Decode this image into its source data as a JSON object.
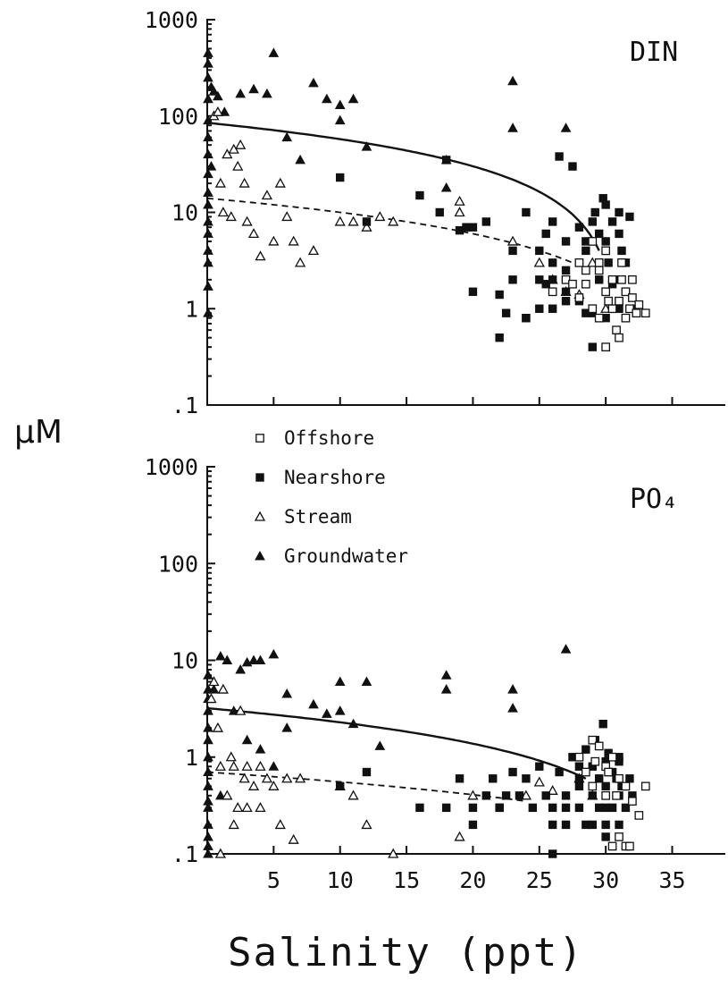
{
  "figure": {
    "ylabel": "µM",
    "xlabel": "Salinity (ppt)"
  },
  "legend": [
    {
      "label": "Offshore",
      "marker": "open-square"
    },
    {
      "label": "Nearshore",
      "marker": "filled-square"
    },
    {
      "label": "Stream",
      "marker": "open-triangle"
    },
    {
      "label": "Groundwater",
      "marker": "filled-triangle"
    }
  ],
  "chart_data": [
    {
      "type": "scatter",
      "title": "DIN",
      "yscale": "log",
      "ylim": [
        0.1,
        1000
      ],
      "xlim": [
        0,
        39
      ],
      "yticks": [
        0.1,
        1,
        10,
        100,
        1000
      ],
      "ytick_labels": [
        ".1",
        "1",
        "10",
        "100",
        "1000"
      ],
      "xticks": [
        5,
        10,
        15,
        20,
        25,
        30,
        35
      ],
      "xtick_labels": [],
      "series": [
        {
          "name": "Groundwater",
          "marker": "filled-triangle",
          "x": [
            0,
            0,
            0,
            0,
            0,
            0,
            0,
            0,
            0,
            0,
            0,
            0,
            0,
            0,
            0,
            0,
            0.3,
            0.3,
            0.5,
            0.8,
            1.3,
            2.5,
            3.5,
            4.5,
            5,
            6,
            7,
            8,
            9,
            10,
            10,
            11,
            12,
            18,
            18,
            23,
            23,
            27
          ],
          "y": [
            450,
            350,
            250,
            150,
            90,
            60,
            40,
            25,
            16,
            12,
            8,
            6,
            4,
            3,
            1.7,
            0.9,
            200,
            30,
            180,
            160,
            110,
            170,
            190,
            170,
            450,
            60,
            35,
            220,
            150,
            130,
            90,
            150,
            48,
            35,
            18,
            230,
            75,
            75
          ]
        },
        {
          "name": "Stream",
          "marker": "open-triangle",
          "x": [
            0.5,
            0.8,
            1,
            1.2,
            1.5,
            1.8,
            2,
            2.3,
            2.5,
            2.8,
            3,
            3.5,
            4,
            4.5,
            5,
            5.5,
            6,
            6.5,
            7,
            8,
            10,
            11,
            12,
            13,
            14,
            19,
            19,
            23,
            25,
            26,
            27,
            28,
            29,
            30
          ],
          "y": [
            100,
            110,
            20,
            10,
            40,
            9,
            45,
            30,
            50,
            20,
            8,
            6,
            3.5,
            15,
            5,
            20,
            9,
            5,
            3,
            4,
            8,
            8,
            7,
            9,
            8,
            13,
            10,
            5,
            3,
            2,
            1.5,
            1.4,
            3,
            1
          ]
        },
        {
          "name": "Nearshore",
          "marker": "filled-square",
          "x": [
            10,
            12,
            16,
            17.5,
            18,
            19,
            19.5,
            20,
            20,
            21,
            22,
            22,
            22.5,
            23,
            23,
            24,
            24,
            25,
            25,
            25.5,
            26,
            26,
            26.5,
            27,
            27,
            27.5,
            28,
            28,
            28.5,
            28.5,
            29,
            29,
            29.2,
            29.5,
            29.5,
            29.8,
            30,
            30,
            30,
            30.2,
            30.5,
            30.5,
            30.8,
            31,
            31,
            31,
            31.2,
            31.5,
            31.5,
            31.8,
            32,
            26,
            25.5,
            28,
            27,
            29,
            30,
            31,
            28.5,
            29.5,
            30.5,
            26,
            27,
            24,
            25
          ],
          "y": [
            23,
            8,
            15,
            10,
            35,
            6.5,
            7,
            1.5,
            7,
            8,
            1.4,
            0.5,
            0.9,
            4,
            2,
            10,
            0.8,
            4,
            2,
            6,
            3,
            1,
            38,
            5,
            1.5,
            30,
            7,
            1.2,
            4,
            0.9,
            8,
            0.4,
            10,
            6,
            2,
            14,
            12,
            5,
            1.5,
            3,
            8,
            1,
            2,
            6,
            10,
            1,
            4,
            3,
            1.5,
            9,
            1,
            8,
            1.8,
            3,
            2.5,
            0.9,
            0.8,
            1.2,
            5,
            3,
            1.8,
            2,
            1.2,
            0.8,
            1
          ]
        },
        {
          "name": "Offshore",
          "marker": "open-square",
          "x": [
            26,
            27,
            28,
            28,
            28.5,
            29,
            29,
            29.5,
            29.5,
            30,
            30,
            30,
            30.5,
            30.5,
            30.8,
            31,
            31,
            31.2,
            31.5,
            31.5,
            31.8,
            32,
            32,
            32.3,
            32.5,
            33,
            28.5,
            29.5,
            30.2,
            31.2,
            27.5
          ],
          "y": [
            1.5,
            2,
            1.3,
            3,
            2.5,
            1,
            5,
            0.8,
            3,
            1.5,
            4,
            0.4,
            2,
            1,
            0.6,
            0.5,
            1.2,
            3,
            1.5,
            0.8,
            1,
            2,
            1.3,
            0.9,
            1.1,
            0.9,
            1.8,
            2.5,
            1.2,
            2,
            1.8
          ]
        }
      ]
    },
    {
      "type": "scatter",
      "title": "PO₄",
      "yscale": "log",
      "ylim": [
        0.1,
        1000
      ],
      "xlim": [
        0,
        39
      ],
      "yticks": [
        0.1,
        1,
        10,
        100,
        1000
      ],
      "ytick_labels": [
        ".1",
        "1",
        "10",
        "100",
        "1000"
      ],
      "xticks": [
        5,
        10,
        15,
        20,
        25,
        30,
        35
      ],
      "xtick_labels": [
        "5",
        "10",
        "15",
        "20",
        "25",
        "30",
        "35"
      ],
      "series": [
        {
          "name": "Groundwater",
          "marker": "filled-triangle",
          "x": [
            0,
            0,
            0,
            0,
            0,
            0,
            0,
            0,
            0,
            0,
            0,
            0,
            0,
            0,
            0,
            0.5,
            1,
            1.5,
            2.5,
            3,
            3.5,
            4,
            5,
            6,
            6,
            8,
            9,
            10,
            10,
            11,
            12,
            13,
            18,
            18,
            23,
            23,
            27,
            3,
            2,
            4,
            5,
            1
          ],
          "y": [
            7,
            5,
            4,
            3,
            2,
            1.5,
            1,
            0.7,
            0.5,
            0.35,
            0.3,
            0.2,
            0.15,
            0.12,
            0.1,
            5,
            11,
            10,
            8,
            9.5,
            10,
            10,
            11.5,
            4.5,
            2,
            3.5,
            2.8,
            6,
            3,
            2.2,
            6,
            1.3,
            7,
            5,
            5,
            3.2,
            13,
            1.5,
            3,
            1.2,
            0.8,
            0.4
          ]
        },
        {
          "name": "Stream",
          "marker": "open-triangle",
          "x": [
            0.3,
            0.5,
            0.8,
            1,
            1.2,
            1.5,
            1.8,
            2,
            2.3,
            2.5,
            2.8,
            3,
            3.5,
            4,
            4.5,
            5,
            5.5,
            6,
            6.5,
            7,
            10,
            11,
            12,
            14,
            19,
            20,
            24,
            25,
            26,
            28,
            29,
            1,
            2,
            3,
            4
          ],
          "y": [
            4,
            6,
            2,
            0.8,
            5,
            0.4,
            1,
            0.8,
            0.3,
            3,
            0.6,
            0.3,
            0.5,
            0.8,
            0.6,
            0.5,
            0.2,
            0.6,
            0.14,
            0.6,
            0.5,
            0.4,
            0.2,
            0.1,
            0.15,
            0.4,
            0.4,
            0.55,
            0.45,
            0.6,
            0.4,
            0.1,
            0.2,
            0.8,
            0.3
          ]
        },
        {
          "name": "Nearshore",
          "marker": "filled-square",
          "x": [
            10,
            12,
            16,
            18,
            19,
            20,
            21,
            21.5,
            22,
            22.5,
            23,
            23.5,
            24,
            24.5,
            25,
            25.5,
            26,
            26,
            26.5,
            27,
            27,
            27.5,
            28,
            28,
            28.5,
            28.5,
            29,
            29,
            29.2,
            29.5,
            29.5,
            29.8,
            30,
            30,
            30,
            30.2,
            30.5,
            30.5,
            30.8,
            31,
            31,
            31.2,
            31.5,
            31.8,
            32,
            26,
            27,
            28,
            29,
            30,
            31,
            28,
            29,
            30,
            31,
            20,
            22
          ],
          "y": [
            0.5,
            0.7,
            0.3,
            0.3,
            0.6,
            0.2,
            0.4,
            0.6,
            0.3,
            0.4,
            0.7,
            0.4,
            0.6,
            0.3,
            0.8,
            0.4,
            0.2,
            0.1,
            0.7,
            0.4,
            0.3,
            1,
            0.5,
            0.3,
            1.2,
            0.2,
            0.8,
            0.4,
            1.5,
            0.6,
            0.3,
            2.2,
            0.9,
            0.5,
            0.2,
            1.1,
            0.7,
            0.3,
            0.6,
            0.9,
            0.4,
            0.5,
            0.3,
            0.6,
            0.4,
            0.3,
            0.2,
            0.6,
            0.2,
            0.3,
            0.2,
            0.8,
            0.5,
            0.15,
            1,
            0.3,
            0.3
          ]
        },
        {
          "name": "Offshore",
          "marker": "open-square",
          "x": [
            28,
            28.5,
            29,
            29,
            29.5,
            30,
            30,
            30.5,
            30.5,
            31,
            31,
            31.5,
            31.5,
            32,
            32.5,
            33,
            29.2,
            30.2,
            30.8,
            31.8
          ],
          "y": [
            1,
            0.7,
            1.5,
            0.5,
            1.3,
            0.8,
            0.4,
            1,
            0.12,
            0.6,
            0.15,
            0.5,
            0.12,
            0.35,
            0.25,
            0.5,
            0.9,
            0.7,
            0.4,
            0.12
          ]
        }
      ]
    }
  ]
}
